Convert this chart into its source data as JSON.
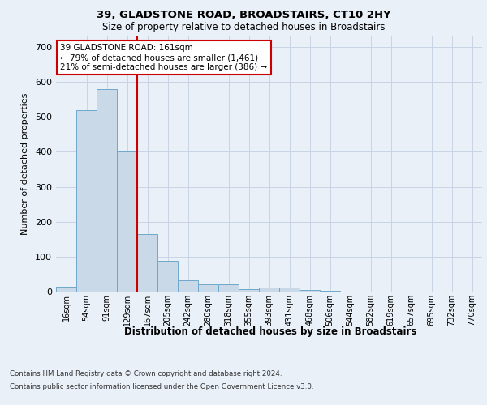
{
  "title1": "39, GLADSTONE ROAD, BROADSTAIRS, CT10 2HY",
  "title2": "Size of property relative to detached houses in Broadstairs",
  "xlabel": "Distribution of detached houses by size in Broadstairs",
  "ylabel": "Number of detached properties",
  "bin_labels": [
    "16sqm",
    "54sqm",
    "91sqm",
    "129sqm",
    "167sqm",
    "205sqm",
    "242sqm",
    "280sqm",
    "318sqm",
    "355sqm",
    "393sqm",
    "431sqm",
    "468sqm",
    "506sqm",
    "544sqm",
    "582sqm",
    "619sqm",
    "657sqm",
    "695sqm",
    "732sqm",
    "770sqm"
  ],
  "bar_values": [
    15,
    520,
    580,
    400,
    165,
    88,
    32,
    20,
    20,
    8,
    12,
    12,
    5,
    2,
    0,
    0,
    0,
    0,
    0,
    0,
    0
  ],
  "bar_color": "#c9d9e8",
  "bar_edgecolor": "#6ea8cc",
  "annotation_text": "39 GLADSTONE ROAD: 161sqm\n← 79% of detached houses are smaller (1,461)\n21% of semi-detached houses are larger (386) →",
  "annotation_box_color": "#ffffff",
  "annotation_box_edgecolor": "#cc0000",
  "ylim": [
    0,
    730
  ],
  "yticks": [
    0,
    100,
    200,
    300,
    400,
    500,
    600,
    700
  ],
  "footer1": "Contains HM Land Registry data © Crown copyright and database right 2024.",
  "footer2": "Contains public sector information licensed under the Open Government Licence v3.0.",
  "bg_color": "#eaf0f8",
  "plot_bg_color": "#eaf0f8"
}
